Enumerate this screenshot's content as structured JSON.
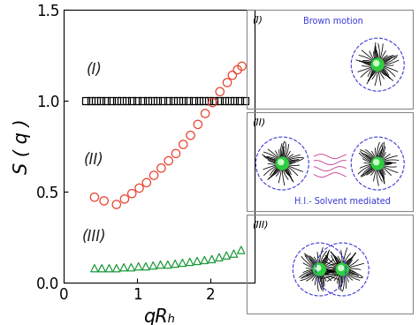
{
  "chart_data": {
    "type": "scatter",
    "x_label": "qRₕ",
    "y_label": "S ( q )",
    "xlim": [
      0,
      2.6
    ],
    "ylim": [
      0,
      1.5
    ],
    "xticks": [
      0,
      1,
      2
    ],
    "yticks": [
      {
        "value": 0,
        "label": "0.0"
      },
      {
        "value": 0.5,
        "label": "0.5"
      },
      {
        "value": 1,
        "label": "1.0"
      },
      {
        "value": 1.5,
        "label": "1.5"
      }
    ],
    "series": [
      {
        "name": "(I)",
        "color": "#000000",
        "marker": "square",
        "x": [
          0.3,
          0.37,
          0.44,
          0.51,
          0.58,
          0.65,
          0.72,
          0.79,
          0.86,
          0.93,
          1.0,
          1.07,
          1.14,
          1.21,
          1.28,
          1.35,
          1.42,
          1.49,
          1.56,
          1.63,
          1.7,
          1.77,
          1.84,
          1.91,
          1.98,
          2.05,
          2.12,
          2.19,
          2.26,
          2.33,
          2.4,
          2.47
        ],
        "values": [
          1.0,
          1.0,
          1.0,
          1.0,
          1.0,
          1.0,
          1.0,
          1.0,
          1.0,
          1.0,
          1.0,
          1.0,
          1.0,
          1.0,
          1.0,
          1.0,
          1.0,
          1.0,
          1.0,
          1.0,
          1.0,
          1.0,
          1.0,
          1.0,
          1.0,
          1.0,
          1.0,
          1.0,
          1.0,
          1.0,
          1.0,
          1.0
        ]
      },
      {
        "name": "(II)",
        "color": "#e8412c",
        "marker": "circle",
        "x": [
          0.42,
          0.55,
          0.72,
          0.83,
          0.93,
          1.03,
          1.13,
          1.23,
          1.33,
          1.43,
          1.53,
          1.63,
          1.73,
          1.83,
          1.93,
          2.03,
          2.13,
          2.23,
          2.3,
          2.37,
          2.43
        ],
        "values": [
          0.47,
          0.45,
          0.43,
          0.46,
          0.49,
          0.52,
          0.55,
          0.59,
          0.63,
          0.67,
          0.71,
          0.76,
          0.81,
          0.87,
          0.93,
          0.99,
          1.05,
          1.1,
          1.14,
          1.17,
          1.19
        ]
      },
      {
        "name": "(III)",
        "color": "#1e9a3c",
        "marker": "triangle",
        "x": [
          0.42,
          0.52,
          0.62,
          0.72,
          0.82,
          0.92,
          1.02,
          1.12,
          1.22,
          1.32,
          1.42,
          1.52,
          1.62,
          1.72,
          1.82,
          1.92,
          2.02,
          2.12,
          2.22,
          2.32,
          2.42
        ],
        "values": [
          0.08,
          0.08,
          0.08,
          0.08,
          0.085,
          0.085,
          0.09,
          0.09,
          0.095,
          0.1,
          0.1,
          0.105,
          0.11,
          0.115,
          0.12,
          0.125,
          0.13,
          0.14,
          0.15,
          0.16,
          0.18
        ]
      }
    ]
  },
  "inset": {
    "panels": [
      {
        "label": "(I)",
        "text": "Brown motion"
      },
      {
        "label": "(II)",
        "text": "H.I.- Solvent mediated"
      },
      {
        "label": "(III)"
      }
    ]
  }
}
